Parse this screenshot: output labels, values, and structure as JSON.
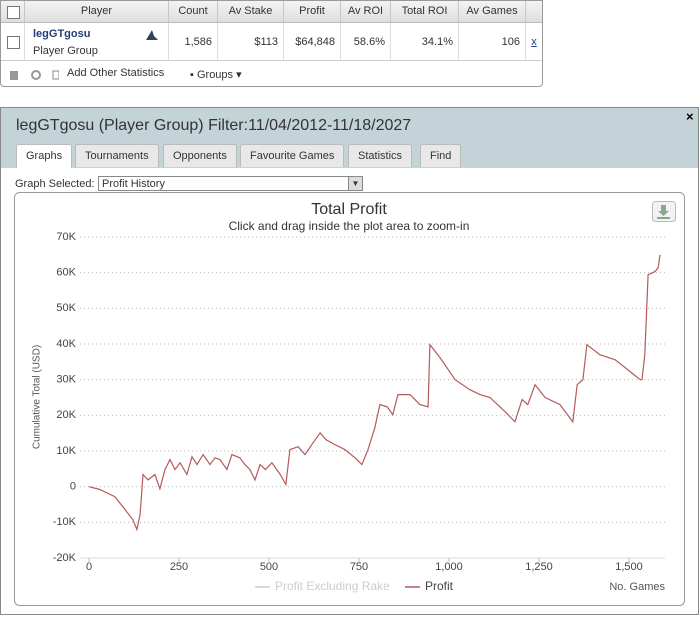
{
  "table": {
    "headers": [
      "Player",
      "Count",
      "Av Stake",
      "Profit",
      "Av ROI",
      "Total ROI",
      "Av Games"
    ],
    "rows": [
      {
        "player": "legGTgosu",
        "group": "Player Group",
        "cells": [
          "1,586",
          "$113",
          "$64,848",
          "58.6%",
          "34.1%",
          "106"
        ],
        "action": "x"
      }
    ]
  },
  "toolbar": {
    "add": "Add Other Statistics",
    "groups": "Groups"
  },
  "panel": {
    "title": "legGTgosu (Player Group) Filter:11/04/2012-11/18/2027",
    "close": "×",
    "tabs": [
      "Graphs",
      "Tournaments",
      "Opponents",
      "Favourite Games",
      "Statistics",
      "Find"
    ],
    "graph_label": "Graph Selected:",
    "graph_selected": "Profit History"
  },
  "chart_data": {
    "type": "line",
    "title": "Total Profit",
    "subtitle": "Click and drag inside the plot area to zoom-in",
    "y_label": "Cumulative Total (USD)",
    "x_label": "No. Games",
    "xlim": [
      -25,
      1600
    ],
    "ylim": [
      -20000,
      70000
    ],
    "xticks": [
      0,
      250,
      500,
      750,
      {
        "value": 1000,
        "label": "1,000"
      },
      {
        "value": 1250,
        "label": "1,250"
      },
      {
        "value": 1500,
        "label": "1,500"
      }
    ],
    "yticks": [
      {
        "value": -20000,
        "label": "-20K"
      },
      {
        "value": -10000,
        "label": "-10K"
      },
      0,
      {
        "value": 10000,
        "label": "10K"
      },
      {
        "value": 20000,
        "label": "20K"
      },
      {
        "value": 30000,
        "label": "30K"
      },
      {
        "value": 40000,
        "label": "40K"
      },
      {
        "value": 50000,
        "label": "50K"
      },
      {
        "value": 60000,
        "label": "60K"
      },
      {
        "value": 70000,
        "label": "70K"
      }
    ],
    "grid": true,
    "series": [
      {
        "name": "Profit Excluding Rake",
        "color": "#cccccc",
        "visible": false
      },
      {
        "name": "Profit",
        "color": "#b55a5a",
        "visible": true,
        "x": [
          0,
          30,
          72,
          100,
          122,
          133,
          142,
          150,
          164,
          183,
          197,
          211,
          225,
          239,
          253,
          272,
          286,
          300,
          317,
          336,
          350,
          364,
          383,
          397,
          419,
          433,
          447,
          461,
          475,
          490,
          508,
          531,
          547,
          558,
          581,
          600,
          619,
          642,
          658,
          683,
          711,
          739,
          758,
          775,
          794,
          808,
          828,
          844,
          858,
          892,
          919,
          942,
          947,
          975,
          1017,
          1058,
          1086,
          1114,
          1156,
          1183,
          1203,
          1219,
          1239,
          1267,
          1308,
          1344,
          1356,
          1372,
          1383,
          1419,
          1461,
          1489,
          1531,
          1536,
          1544,
          1553,
          1572,
          1581,
          1586
        ],
        "values": [
          0,
          -800,
          -2800,
          -6400,
          -9300,
          -12000,
          -7800,
          3400,
          1900,
          3400,
          -600,
          4800,
          7600,
          4800,
          6700,
          3400,
          8400,
          6200,
          9000,
          6200,
          8100,
          7600,
          4800,
          9000,
          8100,
          6200,
          4800,
          1900,
          6200,
          4800,
          6700,
          3400,
          600,
          10400,
          11200,
          9000,
          11800,
          15100,
          13200,
          11800,
          10400,
          8100,
          6200,
          10400,
          16500,
          23000,
          22400,
          20200,
          25800,
          25800,
          23000,
          22400,
          39800,
          36200,
          30000,
          27200,
          25800,
          25000,
          21000,
          18200,
          24400,
          23000,
          28600,
          25000,
          23000,
          18200,
          28600,
          30000,
          39800,
          37000,
          35600,
          33400,
          30000,
          30000,
          37000,
          59400,
          60300,
          61400,
          65000
        ]
      }
    ]
  }
}
